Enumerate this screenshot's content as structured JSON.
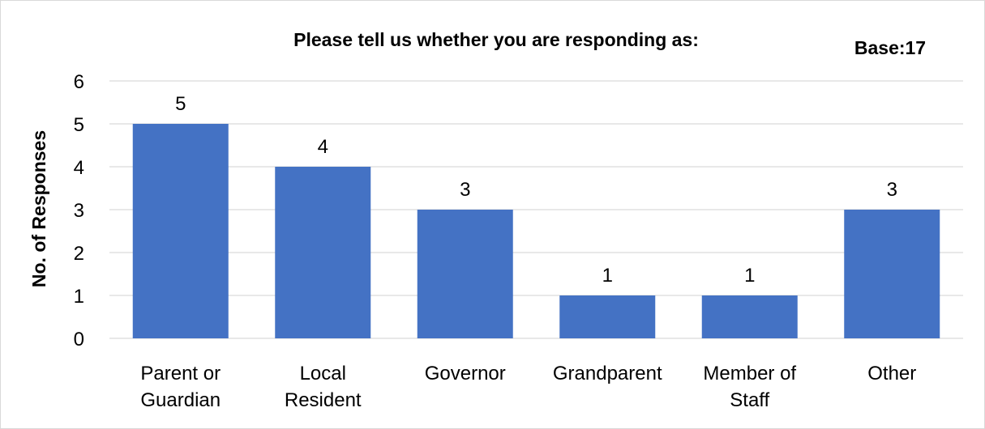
{
  "chart_data": {
    "type": "bar",
    "title": "Please tell us whether you are responding as:",
    "annotation": "Base:17",
    "ylabel": "No. of Responses",
    "xlabel": "",
    "categories": [
      [
        "Parent or",
        "Guardian"
      ],
      [
        "Local",
        "Resident"
      ],
      [
        "Governor"
      ],
      [
        "Grandparent"
      ],
      [
        "Member of",
        "Staff"
      ],
      [
        "Other"
      ]
    ],
    "values": [
      5,
      4,
      3,
      1,
      1,
      3
    ],
    "ylim": [
      0,
      6
    ],
    "yticks": [
      0,
      1,
      2,
      3,
      4,
      5,
      6
    ],
    "grid": true,
    "legend": "none",
    "bar_color": "#4472c4",
    "grid_color": "#d9d9d9"
  }
}
